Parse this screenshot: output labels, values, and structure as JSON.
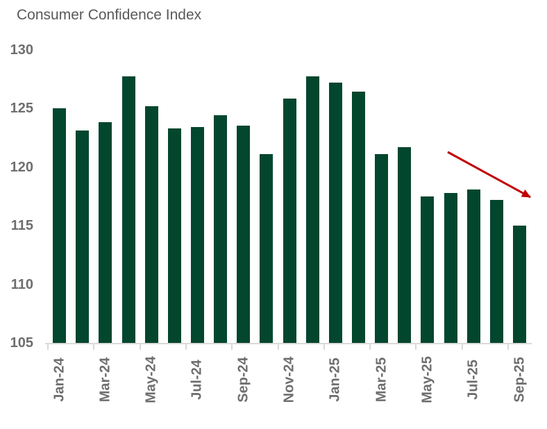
{
  "page": {
    "background": "#ffffff"
  },
  "chart_data": {
    "type": "bar",
    "title": "Consumer Confidence Index",
    "categories": [
      "Jan-24",
      "Feb-24",
      "Mar-24",
      "Apr-24",
      "May-24",
      "Jun-24",
      "Jul-24",
      "Aug-24",
      "Sep-24",
      "Oct-24",
      "Nov-24",
      "Dec-24",
      "Jan-25",
      "Feb-25",
      "Mar-25",
      "Apr-25",
      "May-25",
      "Jun-25",
      "Jul-25",
      "Aug-25",
      "Sep-25"
    ],
    "values": [
      125.0,
      123.1,
      123.8,
      127.7,
      125.2,
      123.3,
      123.4,
      124.4,
      123.5,
      121.1,
      125.8,
      127.7,
      127.2,
      126.4,
      121.1,
      121.7,
      117.5,
      117.8,
      118.1,
      117.2,
      115.0
    ],
    "xtick_labels": [
      "Jan-24",
      "Mar-24",
      "May-24",
      "Jul-24",
      "Sep-24",
      "Nov-24",
      "Jan-25",
      "Mar-25",
      "May-25",
      "Jul-25",
      "Sep-25"
    ],
    "yticks": [
      105,
      110,
      115,
      120,
      125,
      130
    ],
    "ylim": [
      105,
      130
    ],
    "xlabel": "",
    "ylabel": "",
    "grid": "off",
    "legend": "none",
    "bar_color": "#03462e",
    "axis_color": "#d9d9d9",
    "tick_label_color": "#6e6e6e",
    "title_color": "#595959",
    "annotation": {
      "name": "downward-trend-arrow",
      "color": "#c00000"
    }
  }
}
